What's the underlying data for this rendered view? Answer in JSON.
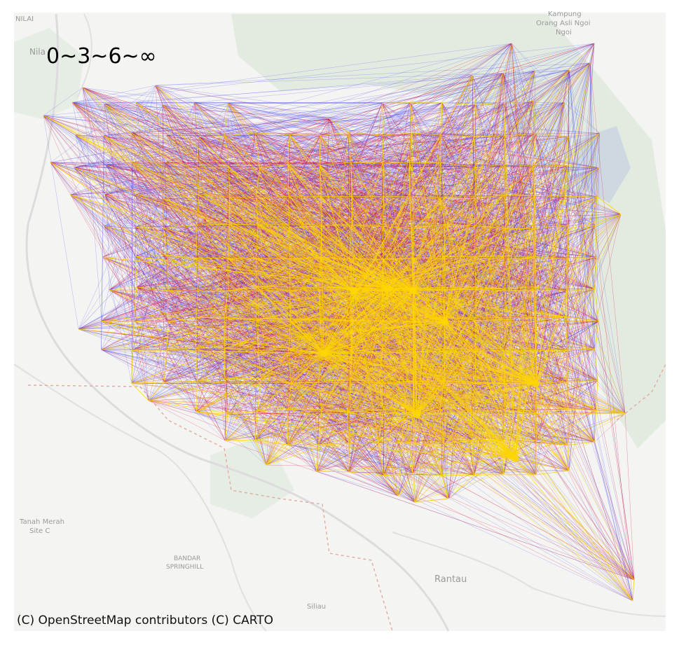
{
  "legend_label": "0~3~6~∞",
  "attribution": "(C) OpenStreetMap contributors (C) CARTO",
  "basemap": {
    "background": "#f4f4f2",
    "green": "#e3ebe1",
    "road": "#dcdcdc",
    "boundary": "#e2a9a0"
  },
  "places": [
    {
      "key": "nilai_top",
      "text": "NILAI"
    },
    {
      "key": "nila",
      "text": "Nila"
    },
    {
      "key": "kampung",
      "text": "Kampung"
    },
    {
      "key": "orang_asli",
      "text": "Orang Asli Ngoi"
    },
    {
      "key": "ngoi",
      "text": "Ngoi"
    },
    {
      "key": "tanah_merah",
      "text": "Tanah Merah"
    },
    {
      "key": "site_c",
      "text": "Site C"
    },
    {
      "key": "bandar",
      "text": "BANDAR"
    },
    {
      "key": "springhill",
      "text": "SPRINGHILL"
    },
    {
      "key": "rantau",
      "text": "Rantau"
    },
    {
      "key": "siliau",
      "text": "Siliau"
    }
  ],
  "flow_colors": {
    "low": "#3a3af2",
    "mid": "#d81b3c",
    "high": "#ffd700"
  }
}
